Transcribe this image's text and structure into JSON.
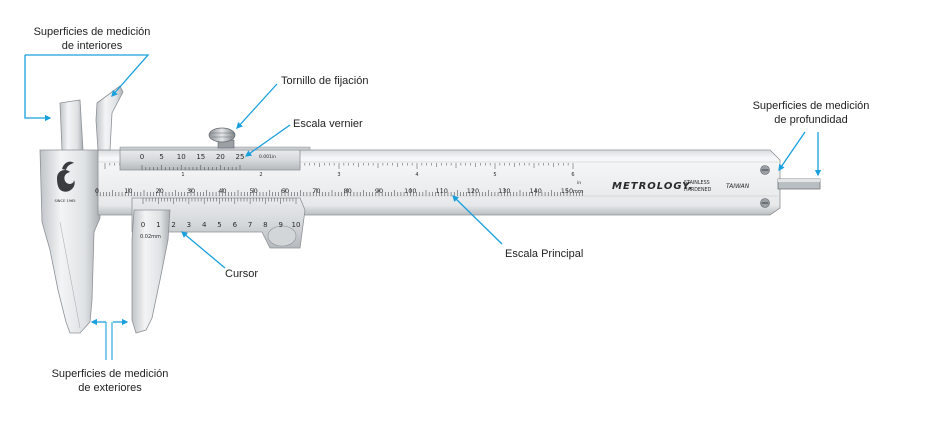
{
  "labels": {
    "interiores_l1": "Superficies de medición",
    "interiores_l2": "de interiores",
    "tornillo": "Tornillo de fijación",
    "vernier": "Escala vernier",
    "profundidad_l1": "Superficies de medición",
    "profundidad_l2": "de profundidad",
    "principal": "Escala Principal",
    "cursor": "Cursor",
    "exteriores_l1": "Superficies de medición",
    "exteriores_l2": "de exteriores"
  },
  "main_scale": {
    "numbers": [
      "0",
      "10",
      "20",
      "30",
      "40",
      "50",
      "60",
      "70",
      "80",
      "90",
      "100",
      "110",
      "120",
      "130",
      "140",
      "150"
    ],
    "unit": "mm",
    "inch_numbers": [
      "1",
      "2",
      "3",
      "4",
      "5",
      "6"
    ],
    "inch_unit": "in"
  },
  "vernier_top": {
    "numbers": [
      "0",
      "5",
      "10",
      "15",
      "20",
      "25"
    ],
    "unit": "0.001in"
  },
  "vernier_bottom": {
    "numbers": [
      "0",
      "1",
      "2",
      "3",
      "4",
      "5",
      "6",
      "7",
      "8",
      "9",
      "10"
    ],
    "unit": "0.02mm"
  },
  "brand": {
    "name": "METROLOGY.",
    "stainless_l1": "STAINLESS",
    "stainless_l2": "HARDENED",
    "origin": "TAIWAN",
    "logo_text": "SINCE 1965"
  },
  "colors": {
    "arrow": "#1aa0dc",
    "steel_light": "#eef0f1",
    "steel_mid": "#c9cdd0",
    "steel_dark": "#8d9297"
  }
}
